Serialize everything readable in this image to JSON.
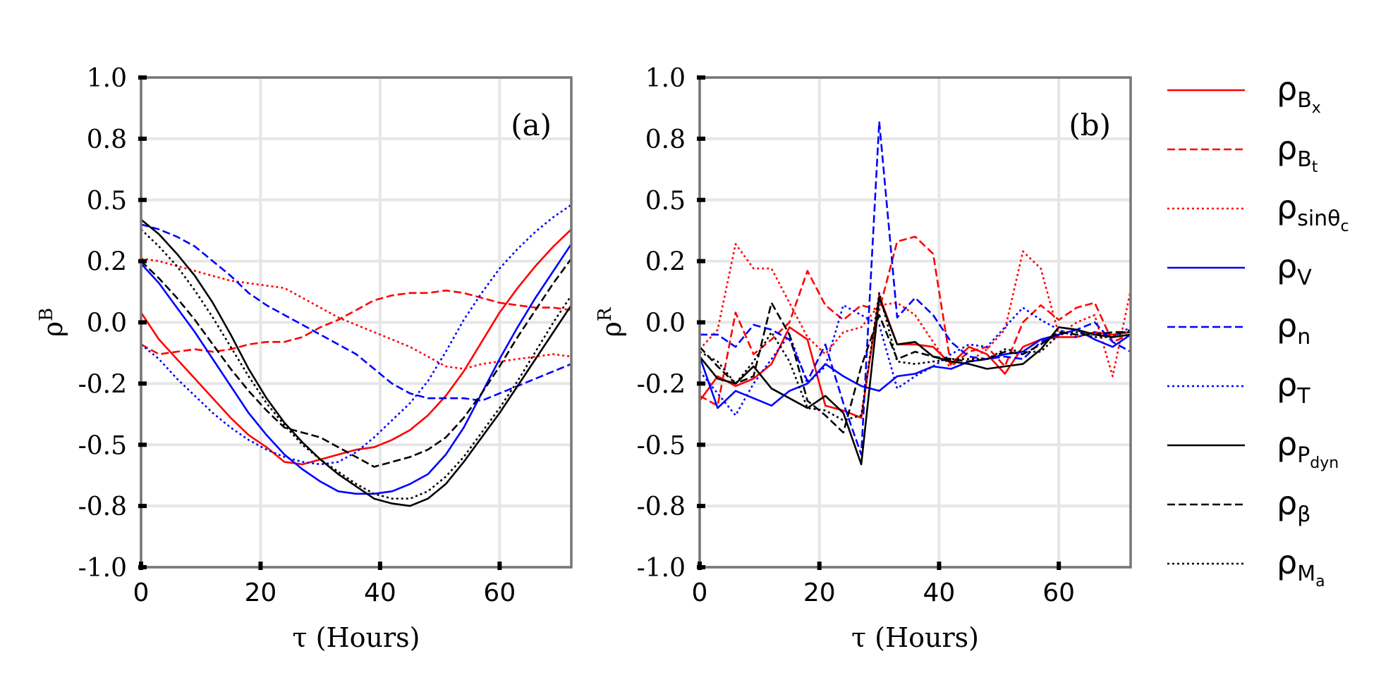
{
  "chart_data": [
    {
      "type": "line",
      "panel": "(a)",
      "xlabel": "τ (Hours)",
      "ylabel_main": "ρ",
      "ylabel_sup": "B",
      "xlim": [
        0,
        72
      ],
      "ylim": [
        -1.0,
        1.0
      ],
      "xticks": [
        0,
        20,
        40,
        60
      ],
      "xtick_labels": [
        "0",
        "20",
        "40",
        "60"
      ],
      "yticks": [
        1.0,
        0.75,
        0.5,
        0.25,
        0.0,
        -0.25,
        -0.5,
        -0.75,
        -1.0
      ],
      "ytick_labels": [
        "1.0",
        "0.8",
        "0.5",
        "0.2",
        "0.0",
        "-0.2",
        "-0.5",
        "-0.8",
        "-1.0"
      ],
      "x": [
        0,
        3,
        6,
        9,
        12,
        15,
        18,
        21,
        24,
        27,
        30,
        33,
        36,
        39,
        42,
        45,
        48,
        51,
        54,
        57,
        60,
        63,
        66,
        69,
        72
      ],
      "series": [
        {
          "name": "Bx",
          "color": "#ff0000",
          "dash": "solid",
          "values": [
            0.04,
            -0.07,
            -0.15,
            -0.23,
            -0.31,
            -0.39,
            -0.46,
            -0.51,
            -0.57,
            -0.58,
            -0.56,
            -0.54,
            -0.52,
            -0.51,
            -0.48,
            -0.44,
            -0.38,
            -0.3,
            -0.2,
            -0.08,
            0.04,
            0.14,
            0.23,
            0.31,
            0.38
          ]
        },
        {
          "name": "Bt",
          "color": "#ff0000",
          "dash": "dashed",
          "values": [
            -0.09,
            -0.13,
            -0.12,
            -0.11,
            -0.12,
            -0.11,
            -0.09,
            -0.08,
            -0.08,
            -0.06,
            -0.02,
            0.01,
            0.05,
            0.09,
            0.11,
            0.12,
            0.12,
            0.13,
            0.12,
            0.1,
            0.08,
            0.07,
            0.06,
            0.06,
            0.05
          ]
        },
        {
          "name": "sinθc",
          "color": "#ff0000",
          "dash": "dotted",
          "values": [
            0.26,
            0.25,
            0.23,
            0.21,
            0.19,
            0.17,
            0.16,
            0.15,
            0.14,
            0.1,
            0.06,
            0.02,
            -0.01,
            -0.04,
            -0.07,
            -0.1,
            -0.14,
            -0.18,
            -0.19,
            -0.17,
            -0.16,
            -0.15,
            -0.14,
            -0.13,
            -0.14
          ]
        },
        {
          "name": "V",
          "color": "#0000ff",
          "dash": "solid",
          "values": [
            0.24,
            0.16,
            0.06,
            -0.04,
            -0.15,
            -0.26,
            -0.37,
            -0.46,
            -0.54,
            -0.6,
            -0.65,
            -0.69,
            -0.7,
            -0.7,
            -0.69,
            -0.66,
            -0.62,
            -0.54,
            -0.43,
            -0.29,
            -0.15,
            -0.02,
            0.1,
            0.21,
            0.32
          ]
        },
        {
          "name": "n",
          "color": "#0000ff",
          "dash": "dashed",
          "values": [
            0.4,
            0.38,
            0.35,
            0.31,
            0.25,
            0.19,
            0.12,
            0.07,
            0.03,
            -0.01,
            -0.05,
            -0.09,
            -0.13,
            -0.19,
            -0.25,
            -0.29,
            -0.31,
            -0.31,
            -0.31,
            -0.32,
            -0.29,
            -0.26,
            -0.23,
            -0.2,
            -0.17
          ]
        },
        {
          "name": "T",
          "color": "#0000ff",
          "dash": "dotted",
          "values": [
            -0.09,
            -0.15,
            -0.23,
            -0.3,
            -0.37,
            -0.43,
            -0.48,
            -0.52,
            -0.55,
            -0.57,
            -0.58,
            -0.57,
            -0.53,
            -0.47,
            -0.4,
            -0.33,
            -0.24,
            -0.12,
            0.01,
            0.12,
            0.22,
            0.3,
            0.37,
            0.43,
            0.48
          ]
        },
        {
          "name": "Pdyn",
          "color": "#000000",
          "dash": "solid",
          "values": [
            0.42,
            0.36,
            0.28,
            0.19,
            0.08,
            -0.05,
            -0.19,
            -0.31,
            -0.41,
            -0.49,
            -0.56,
            -0.62,
            -0.67,
            -0.72,
            -0.74,
            -0.75,
            -0.72,
            -0.66,
            -0.57,
            -0.47,
            -0.37,
            -0.26,
            -0.15,
            -0.04,
            0.07
          ]
        },
        {
          "name": "β",
          "color": "#000000",
          "dash": "dashed",
          "values": [
            0.25,
            0.18,
            0.1,
            0.01,
            -0.09,
            -0.19,
            -0.28,
            -0.36,
            -0.43,
            -0.45,
            -0.47,
            -0.51,
            -0.55,
            -0.59,
            -0.57,
            -0.55,
            -0.52,
            -0.47,
            -0.39,
            -0.29,
            -0.18,
            -0.06,
            0.05,
            0.16,
            0.26
          ]
        },
        {
          "name": "Ma",
          "color": "#000000",
          "dash": "dotted",
          "values": [
            0.38,
            0.31,
            0.23,
            0.13,
            0.02,
            -0.1,
            -0.22,
            -0.33,
            -0.42,
            -0.5,
            -0.56,
            -0.61,
            -0.66,
            -0.7,
            -0.72,
            -0.72,
            -0.69,
            -0.63,
            -0.55,
            -0.45,
            -0.35,
            -0.24,
            -0.12,
            0.0,
            0.11
          ]
        }
      ]
    },
    {
      "type": "line",
      "panel": "(b)",
      "xlabel": "τ (Hours)",
      "ylabel_main": "ρ",
      "ylabel_sup": "R",
      "xlim": [
        0,
        72
      ],
      "ylim": [
        -1.0,
        1.0
      ],
      "xticks": [
        0,
        20,
        40,
        60
      ],
      "xtick_labels": [
        "0",
        "20",
        "40",
        "60"
      ],
      "yticks": [
        1.0,
        0.75,
        0.5,
        0.25,
        0.0,
        -0.25,
        -0.5,
        -0.75,
        -1.0
      ],
      "ytick_labels": [
        "1.0",
        "0.8",
        "0.5",
        "0.2",
        "0.0",
        "-0.2",
        "-0.5",
        "-0.8",
        "-1.0"
      ],
      "x": [
        0,
        3,
        6,
        9,
        12,
        15,
        18,
        21,
        24,
        27,
        30,
        33,
        36,
        39,
        42,
        45,
        48,
        51,
        54,
        57,
        60,
        63,
        66,
        69,
        72
      ],
      "series": [
        {
          "name": "Bx",
          "color": "#ff0000",
          "dash": "solid",
          "values": [
            -0.32,
            -0.22,
            -0.26,
            -0.23,
            -0.17,
            -0.02,
            -0.07,
            -0.34,
            -0.36,
            -0.39,
            0.11,
            -0.09,
            -0.09,
            -0.1,
            -0.17,
            -0.1,
            -0.13,
            -0.21,
            -0.1,
            -0.07,
            -0.06,
            -0.06,
            -0.04,
            -0.05,
            -0.04
          ]
        },
        {
          "name": "Bt",
          "color": "#ff0000",
          "dash": "dashed",
          "values": [
            -0.3,
            -0.34,
            0.04,
            -0.13,
            -0.07,
            0.0,
            0.21,
            0.07,
            0.01,
            0.07,
            0.05,
            0.33,
            0.35,
            0.28,
            -0.18,
            -0.12,
            -0.1,
            -0.18,
            0.0,
            0.07,
            0.01,
            0.06,
            0.08,
            -0.08,
            -0.05
          ]
        },
        {
          "name": "sinθc",
          "color": "#ff0000",
          "dash": "dotted",
          "values": [
            -0.11,
            -0.03,
            0.32,
            0.22,
            0.22,
            0.08,
            -0.06,
            -0.13,
            -0.04,
            -0.02,
            0.07,
            0.08,
            0.03,
            -0.08,
            -0.19,
            -0.16,
            -0.11,
            -0.03,
            0.29,
            0.22,
            -0.05,
            0.0,
            0.03,
            -0.22,
            0.13
          ]
        },
        {
          "name": "V",
          "color": "#0000ff",
          "dash": "solid",
          "values": [
            -0.14,
            -0.35,
            -0.28,
            -0.31,
            -0.34,
            -0.28,
            -0.25,
            -0.17,
            -0.22,
            -0.26,
            -0.28,
            -0.22,
            -0.21,
            -0.18,
            -0.19,
            -0.16,
            -0.15,
            -0.13,
            -0.12,
            -0.07,
            -0.05,
            -0.03,
            -0.07,
            -0.1,
            -0.05
          ]
        },
        {
          "name": "n",
          "color": "#0000ff",
          "dash": "dashed",
          "values": [
            -0.05,
            -0.05,
            -0.1,
            -0.01,
            -0.03,
            -0.07,
            -0.24,
            -0.09,
            -0.33,
            -0.54,
            0.82,
            0.02,
            0.1,
            0.03,
            -0.08,
            -0.14,
            -0.15,
            -0.14,
            -0.15,
            -0.08,
            -0.05,
            -0.03,
            0.0,
            -0.08,
            -0.12
          ]
        },
        {
          "name": "T",
          "color": "#0000ff",
          "dash": "dotted",
          "values": [
            -0.2,
            -0.29,
            -0.38,
            -0.25,
            -0.15,
            -0.05,
            -0.25,
            -0.18,
            0.07,
            0.03,
            -0.01,
            -0.27,
            -0.22,
            -0.18,
            -0.13,
            -0.09,
            -0.1,
            -0.02,
            0.06,
            0.01,
            -0.03,
            -0.06,
            -0.04,
            -0.06,
            -0.02
          ]
        },
        {
          "name": "Pdyn",
          "color": "#000000",
          "dash": "solid",
          "values": [
            -0.14,
            -0.23,
            -0.25,
            -0.18,
            -0.27,
            -0.31,
            -0.35,
            -0.3,
            -0.37,
            -0.58,
            0.1,
            -0.09,
            -0.08,
            -0.14,
            -0.16,
            -0.17,
            -0.19,
            -0.18,
            -0.17,
            -0.11,
            -0.02,
            -0.03,
            -0.05,
            -0.06,
            -0.05
          ]
        },
        {
          "name": "β",
          "color": "#000000",
          "dash": "dashed",
          "values": [
            -0.1,
            -0.18,
            -0.25,
            -0.22,
            0.08,
            -0.05,
            -0.32,
            -0.38,
            -0.45,
            -0.18,
            0.03,
            -0.15,
            -0.12,
            -0.14,
            -0.15,
            -0.16,
            -0.15,
            -0.12,
            -0.13,
            -0.09,
            -0.04,
            -0.05,
            -0.05,
            -0.04,
            -0.04
          ]
        },
        {
          "name": "Ma",
          "color": "#000000",
          "dash": "dotted",
          "values": [
            -0.12,
            -0.16,
            -0.25,
            -0.16,
            -0.04,
            -0.16,
            -0.35,
            -0.36,
            -0.4,
            -0.38,
            0.12,
            -0.16,
            -0.17,
            -0.16,
            -0.15,
            -0.15,
            -0.15,
            -0.11,
            -0.12,
            -0.12,
            -0.05,
            -0.04,
            -0.06,
            -0.06,
            -0.03
          ]
        }
      ]
    }
  ],
  "legend": {
    "placement": "right",
    "items": [
      {
        "symbol": "ρ",
        "sub": "B",
        "subsub": "x",
        "color": "#ff0000",
        "dash": "solid"
      },
      {
        "symbol": "ρ",
        "sub": "B",
        "subsub": "t",
        "color": "#ff0000",
        "dash": "dashed"
      },
      {
        "symbol": "ρ",
        "sub": "sinθ",
        "subsub": "c",
        "color": "#ff0000",
        "dash": "dotted"
      },
      {
        "symbol": "ρ",
        "sub": "V",
        "subsub": "",
        "color": "#0000ff",
        "dash": "solid"
      },
      {
        "symbol": "ρ",
        "sub": "n",
        "subsub": "",
        "color": "#0000ff",
        "dash": "dashed"
      },
      {
        "symbol": "ρ",
        "sub": "T",
        "subsub": "",
        "color": "#0000ff",
        "dash": "dotted"
      },
      {
        "symbol": "ρ",
        "sub": "P",
        "subsub": "dyn",
        "color": "#000000",
        "dash": "solid"
      },
      {
        "symbol": "ρ",
        "sub": "β",
        "subsub": "",
        "color": "#000000",
        "dash": "dashed"
      },
      {
        "symbol": "ρ",
        "sub": "M",
        "subsub": "a",
        "color": "#000000",
        "dash": "dotted"
      }
    ]
  }
}
